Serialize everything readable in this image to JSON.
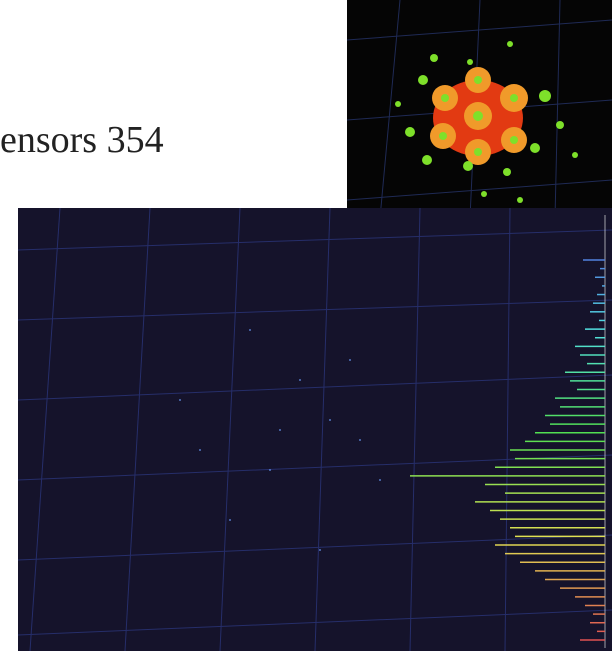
{
  "caption": "ensors 354",
  "histogram": {
    "values": [
      22,
      5,
      10,
      3,
      8,
      12,
      15,
      6,
      20,
      10,
      30,
      25,
      18,
      40,
      35,
      28,
      50,
      45,
      60,
      55,
      70,
      80,
      95,
      90,
      110,
      195,
      120,
      100,
      130,
      115,
      105,
      95,
      90,
      110,
      100,
      85,
      70,
      60,
      45,
      30,
      20,
      12,
      15,
      8,
      25
    ]
  }
}
